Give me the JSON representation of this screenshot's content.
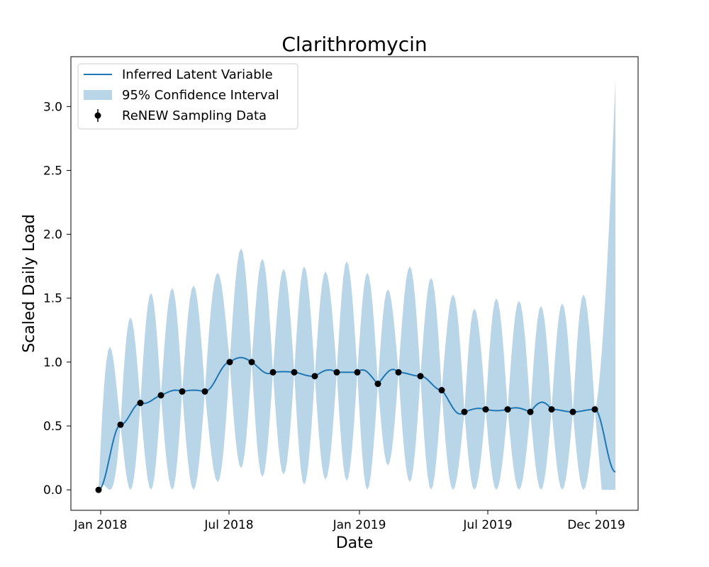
{
  "chart_data": {
    "type": "line",
    "title": "Clarithromycin",
    "xlabel": "Date",
    "ylabel": "Scaled Daily Load",
    "xlim": [
      "2017-11-20",
      "2020-01-29"
    ],
    "ylim": [
      -0.16,
      3.39
    ],
    "x_ticks": [
      {
        "date": "2018-01-01",
        "label": "Jan 2018"
      },
      {
        "date": "2018-07-01",
        "label": "Jul 2018"
      },
      {
        "date": "2019-01-01",
        "label": "Jan 2019"
      },
      {
        "date": "2019-07-01",
        "label": "Jul 2019"
      },
      {
        "date": "2019-12-01",
        "label": "Dec 2019"
      }
    ],
    "y_ticks": [
      0.0,
      0.5,
      1.0,
      1.5,
      2.0,
      2.5,
      3.0
    ],
    "y_tick_labels": [
      "0.0",
      "0.5",
      "1.0",
      "1.5",
      "2.0",
      "2.5",
      "3.0"
    ],
    "grid": false,
    "legend": {
      "position": "top-left",
      "entries": [
        "Inferred Latent Variable",
        "95% Confidence Interval",
        "ReNEW Sampling Data"
      ]
    },
    "colors": {
      "line": "#1f77b4",
      "band": "#b9d5e8",
      "points": "#000000"
    },
    "series": [
      {
        "name": "ReNEW Sampling Data",
        "kind": "scatter",
        "points": [
          {
            "x": "2017-12-29",
            "y": 0.0
          },
          {
            "x": "2018-01-29",
            "y": 0.51
          },
          {
            "x": "2018-02-26",
            "y": 0.68
          },
          {
            "x": "2018-03-27",
            "y": 0.74
          },
          {
            "x": "2018-04-26",
            "y": 0.77
          },
          {
            "x": "2018-05-28",
            "y": 0.77
          },
          {
            "x": "2018-07-02",
            "y": 1.0
          },
          {
            "x": "2018-08-02",
            "y": 1.0
          },
          {
            "x": "2018-09-01",
            "y": 0.92
          },
          {
            "x": "2018-10-01",
            "y": 0.92
          },
          {
            "x": "2018-10-30",
            "y": 0.89
          },
          {
            "x": "2018-11-30",
            "y": 0.92
          },
          {
            "x": "2018-12-29",
            "y": 0.92
          },
          {
            "x": "2019-01-27",
            "y": 0.83
          },
          {
            "x": "2019-02-25",
            "y": 0.92
          },
          {
            "x": "2019-03-28",
            "y": 0.89
          },
          {
            "x": "2019-04-27",
            "y": 0.78
          },
          {
            "x": "2019-05-29",
            "y": 0.61
          },
          {
            "x": "2019-06-28",
            "y": 0.63
          },
          {
            "x": "2019-07-29",
            "y": 0.63
          },
          {
            "x": "2019-08-30",
            "y": 0.61
          },
          {
            "x": "2019-09-29",
            "y": 0.63
          },
          {
            "x": "2019-10-29",
            "y": 0.61
          },
          {
            "x": "2019-11-29",
            "y": 0.63
          }
        ]
      },
      {
        "name": "Inferred Latent Variable",
        "kind": "line",
        "end": {
          "x": "2019-12-28",
          "y": 0.14
        },
        "bumps": [
          0.0,
          0.0,
          0.695,
          0.775,
          0.78,
          0.0,
          1.035,
          0.93,
          0.925,
          0.9,
          0.935,
          0.0,
          0.92,
          0.925,
          0.0,
          0.0,
          0.64,
          0.635,
          0.62,
          0.64,
          0.685,
          0.0
        ]
      },
      {
        "name": "95% Confidence Interval",
        "kind": "band",
        "upper_peaks": [
          {
            "x": "2018-01-14",
            "y": 1.12
          },
          {
            "x": "2018-02-12",
            "y": 1.35
          },
          {
            "x": "2018-03-13",
            "y": 1.54
          },
          {
            "x": "2018-04-12",
            "y": 1.58
          },
          {
            "x": "2018-05-12",
            "y": 1.6
          },
          {
            "x": "2018-06-15",
            "y": 1.7
          },
          {
            "x": "2018-07-18",
            "y": 1.89
          },
          {
            "x": "2018-08-17",
            "y": 1.81
          },
          {
            "x": "2018-09-16",
            "y": 1.73
          },
          {
            "x": "2018-10-15",
            "y": 1.75
          },
          {
            "x": "2018-11-14",
            "y": 1.71
          },
          {
            "x": "2018-12-14",
            "y": 1.79
          },
          {
            "x": "2019-01-12",
            "y": 1.7
          },
          {
            "x": "2019-02-10",
            "y": 1.57
          },
          {
            "x": "2019-03-13",
            "y": 1.75
          },
          {
            "x": "2019-04-12",
            "y": 1.66
          },
          {
            "x": "2019-05-13",
            "y": 1.53
          },
          {
            "x": "2019-06-12",
            "y": 1.42
          },
          {
            "x": "2019-07-13",
            "y": 1.5
          },
          {
            "x": "2019-08-14",
            "y": 1.48
          },
          {
            "x": "2019-09-14",
            "y": 1.44
          },
          {
            "x": "2019-10-14",
            "y": 1.46
          },
          {
            "x": "2019-11-13",
            "y": 1.53
          },
          {
            "x": "2019-12-28",
            "y": 3.21
          }
        ],
        "lower_dips": [
          0.0,
          0.0,
          0.0,
          0.0,
          0.0,
          0.06,
          0.17,
          0.1,
          0.12,
          0.04,
          0.08,
          0.07,
          0.0,
          0.19,
          0.06,
          0.0,
          0.0,
          0.0,
          0.0,
          0.0,
          0.0,
          0.0,
          0.0,
          0.0
        ]
      }
    ]
  }
}
